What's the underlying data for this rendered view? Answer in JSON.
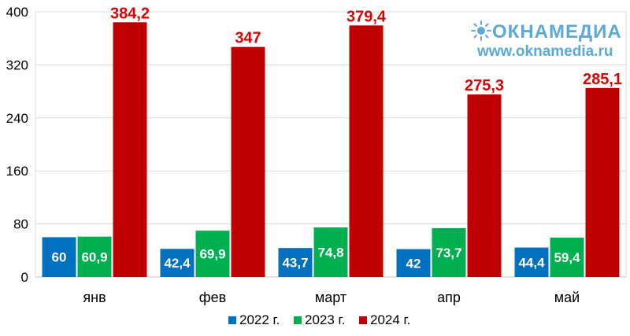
{
  "chart_data": {
    "type": "bar",
    "categories": [
      "янв",
      "фев",
      "март",
      "апр",
      "май"
    ],
    "series": [
      {
        "name": "2022 г.",
        "values": [
          60,
          42.4,
          43.7,
          42,
          44.4
        ],
        "labels": [
          "60",
          "42,4",
          "43,7",
          "42",
          "44,4"
        ],
        "color": "#0070c0"
      },
      {
        "name": "2023 г.",
        "values": [
          60.9,
          69.9,
          74.8,
          73.7,
          59.4
        ],
        "labels": [
          "60,9",
          "69,9",
          "74,8",
          "73,7",
          "59,4"
        ],
        "color": "#00b050"
      },
      {
        "name": "2024 г.",
        "values": [
          384.2,
          347,
          379.4,
          275.3,
          285.1
        ],
        "labels": [
          "384,2",
          "347",
          "379,4",
          "275,3",
          "285,1"
        ],
        "color": "#c00000"
      }
    ],
    "yticks": [
      "0",
      "80",
      "160",
      "240",
      "320",
      "400"
    ],
    "ylim": [
      0,
      400
    ],
    "grid": true,
    "legend": "bottom"
  },
  "watermark": {
    "name": "ОКНАМЕДИА",
    "url": "www.oknamedia.ru"
  },
  "colors": {
    "grid": "#d9d9d9",
    "axis": "#bfbfbf",
    "top_label": "#e00000",
    "watermark": "#5aa9d6"
  }
}
